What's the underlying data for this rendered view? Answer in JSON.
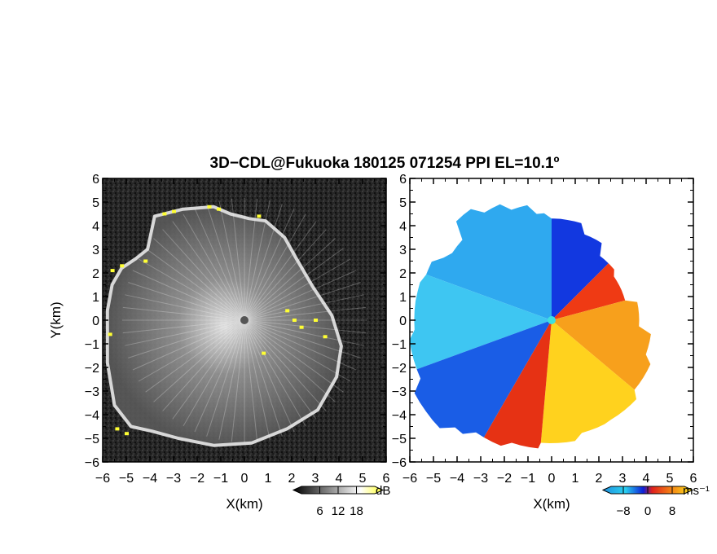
{
  "title": "3D−CDL@Fukuoka 180125 071254 PPI EL=10.1º",
  "chart_data": [
    {
      "type": "heatmap",
      "panel": "reflectivity",
      "xlabel": "X(km)",
      "ylabel": "Y(km)",
      "xlim": [
        -6,
        6
      ],
      "ylim": [
        -6,
        6
      ],
      "xticks": [
        "−6",
        "−5",
        "−4",
        "−3",
        "−2",
        "−1",
        "0",
        "1",
        "2",
        "3",
        "4",
        "5",
        "6"
      ],
      "yticks": [
        "6",
        "5",
        "4",
        "3",
        "2",
        "1",
        "0",
        "−1",
        "−2",
        "−3",
        "−4",
        "−5",
        "−6"
      ],
      "colorbar": {
        "unit": "dB",
        "ticks": [
          "6",
          "12",
          "18"
        ],
        "values": [
          6,
          12,
          18
        ],
        "range": [
          0,
          24
        ],
        "colors": [
          "#000000",
          "#ffffff",
          "#ffff33"
        ]
      },
      "echo_boundary_km": [
        [
          -5.2,
          2.2
        ],
        [
          -4.6,
          2.6
        ],
        [
          -4.1,
          3.0
        ],
        [
          -3.8,
          4.4
        ],
        [
          -2.6,
          4.7
        ],
        [
          -1.3,
          4.8
        ],
        [
          -0.6,
          4.5
        ],
        [
          0.2,
          4.3
        ],
        [
          0.9,
          4.2
        ],
        [
          1.7,
          3.5
        ],
        [
          2.2,
          2.6
        ],
        [
          2.9,
          1.4
        ],
        [
          3.7,
          0.2
        ],
        [
          4.1,
          -1.1
        ],
        [
          3.9,
          -2.4
        ],
        [
          3.1,
          -3.8
        ],
        [
          1.8,
          -4.6
        ],
        [
          0.3,
          -5.2
        ],
        [
          -1.3,
          -5.3
        ],
        [
          -2.8,
          -5.0
        ],
        [
          -3.9,
          -4.7
        ],
        [
          -4.8,
          -4.5
        ],
        [
          -5.5,
          -3.6
        ],
        [
          -5.8,
          -1.8
        ],
        [
          -5.8,
          0.4
        ],
        [
          -5.6,
          1.5
        ]
      ],
      "strong_echo_km": [
        [
          -3.4,
          4.5
        ],
        [
          -3.0,
          4.6
        ],
        [
          -1.5,
          4.8
        ],
        [
          -1.1,
          4.7
        ],
        [
          0.6,
          4.4
        ],
        [
          -4.2,
          2.5
        ],
        [
          -5.6,
          2.1
        ],
        [
          -5.2,
          2.3
        ],
        [
          1.8,
          0.4
        ],
        [
          2.1,
          0.0
        ],
        [
          2.4,
          -0.3
        ],
        [
          3.0,
          0.0
        ],
        [
          3.4,
          -0.7
        ],
        [
          0.8,
          -1.4
        ],
        [
          -5.4,
          -4.6
        ],
        [
          -5.0,
          -4.8
        ],
        [
          -5.7,
          -0.6
        ]
      ]
    },
    {
      "type": "heatmap",
      "panel": "radial-velocity",
      "xlabel": "X(km)",
      "ylabel": "",
      "xlim": [
        -6,
        6
      ],
      "ylim": [
        -6,
        6
      ],
      "xticks": [
        "−6",
        "−5",
        "−4",
        "−3",
        "−2",
        "−1",
        "0",
        "1",
        "2",
        "3",
        "4",
        "5",
        "6"
      ],
      "yticks": [
        "6",
        "5",
        "4",
        "3",
        "2",
        "1",
        "0",
        "−1",
        "−2",
        "−3",
        "−4",
        "−5",
        "−6"
      ],
      "colorbar": {
        "unit": "ms⁻¹",
        "ticks": [
          "−8",
          "0",
          "8"
        ],
        "values": [
          -8,
          0,
          8
        ],
        "range": [
          -12,
          12
        ],
        "colors": [
          "#1f8fdd",
          "#2ad0f0",
          "#0c1fd8",
          "#e0201c",
          "#f58a14",
          "#ffe820"
        ]
      },
      "sectors": [
        {
          "from_deg": 90,
          "to_deg": 160,
          "velocity": -4,
          "color": "#2fa9ef"
        },
        {
          "from_deg": 160,
          "to_deg": 200,
          "velocity": -6,
          "color": "#3ec6f2"
        },
        {
          "from_deg": 45,
          "to_deg": 90,
          "velocity": -9,
          "color": "#1238e0"
        },
        {
          "from_deg": 200,
          "to_deg": 240,
          "velocity": -10,
          "color": "#1a5de6"
        },
        {
          "from_deg": 15,
          "to_deg": 45,
          "velocity": 2,
          "color": "#ef3a14"
        },
        {
          "from_deg": -40,
          "to_deg": 15,
          "velocity": 6,
          "color": "#f7a01c"
        },
        {
          "from_deg": -95,
          "to_deg": -40,
          "velocity": 9,
          "color": "#ffd21e"
        },
        {
          "from_deg": 240,
          "to_deg": 265,
          "velocity": 1,
          "color": "#e63214"
        }
      ]
    }
  ]
}
